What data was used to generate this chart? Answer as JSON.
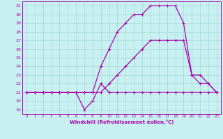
{
  "xlabel": "Windchill (Refroidissement éolien,°C)",
  "bg_color": "#c8f0f0",
  "grid_color": "#a0d8d8",
  "line_color": "#aa00aa",
  "xlim": [
    -0.5,
    23.5
  ],
  "ylim": [
    18.5,
    31.5
  ],
  "yticks": [
    19,
    20,
    21,
    22,
    23,
    24,
    25,
    26,
    27,
    28,
    29,
    30,
    31
  ],
  "xticks": [
    0,
    1,
    2,
    3,
    4,
    5,
    6,
    7,
    8,
    9,
    10,
    11,
    12,
    13,
    14,
    15,
    16,
    17,
    18,
    19,
    20,
    21,
    22,
    23
  ],
  "line1_x": [
    0,
    1,
    2,
    3,
    4,
    5,
    6,
    7,
    8,
    9,
    10,
    11,
    12,
    13,
    14,
    15,
    16,
    17,
    18,
    19,
    20,
    21,
    22,
    23
  ],
  "line1_y": [
    21,
    21,
    21,
    21,
    21,
    21,
    21,
    19,
    20,
    22,
    21,
    21,
    21,
    21,
    21,
    21,
    21,
    21,
    21,
    21,
    21,
    21,
    21,
    21
  ],
  "line2_x": [
    0,
    1,
    2,
    3,
    4,
    5,
    6,
    7,
    8,
    9,
    10,
    11,
    12,
    13,
    14,
    15,
    16,
    17,
    18,
    19,
    20,
    21,
    22,
    23
  ],
  "line2_y": [
    21,
    21,
    21,
    21,
    21,
    21,
    21,
    21,
    21,
    21,
    22,
    23,
    24,
    25,
    26,
    27,
    27,
    27,
    27,
    27,
    23,
    22,
    22,
    21
  ],
  "line3_x": [
    0,
    1,
    2,
    3,
    4,
    5,
    6,
    7,
    8,
    9,
    10,
    11,
    12,
    13,
    14,
    15,
    16,
    17,
    18,
    19,
    20,
    21,
    22,
    23
  ],
  "line3_y": [
    21,
    21,
    21,
    21,
    21,
    21,
    21,
    21,
    21,
    24,
    26,
    28,
    29,
    30,
    30,
    31,
    31,
    31,
    31,
    29,
    23,
    23,
    22,
    21
  ]
}
